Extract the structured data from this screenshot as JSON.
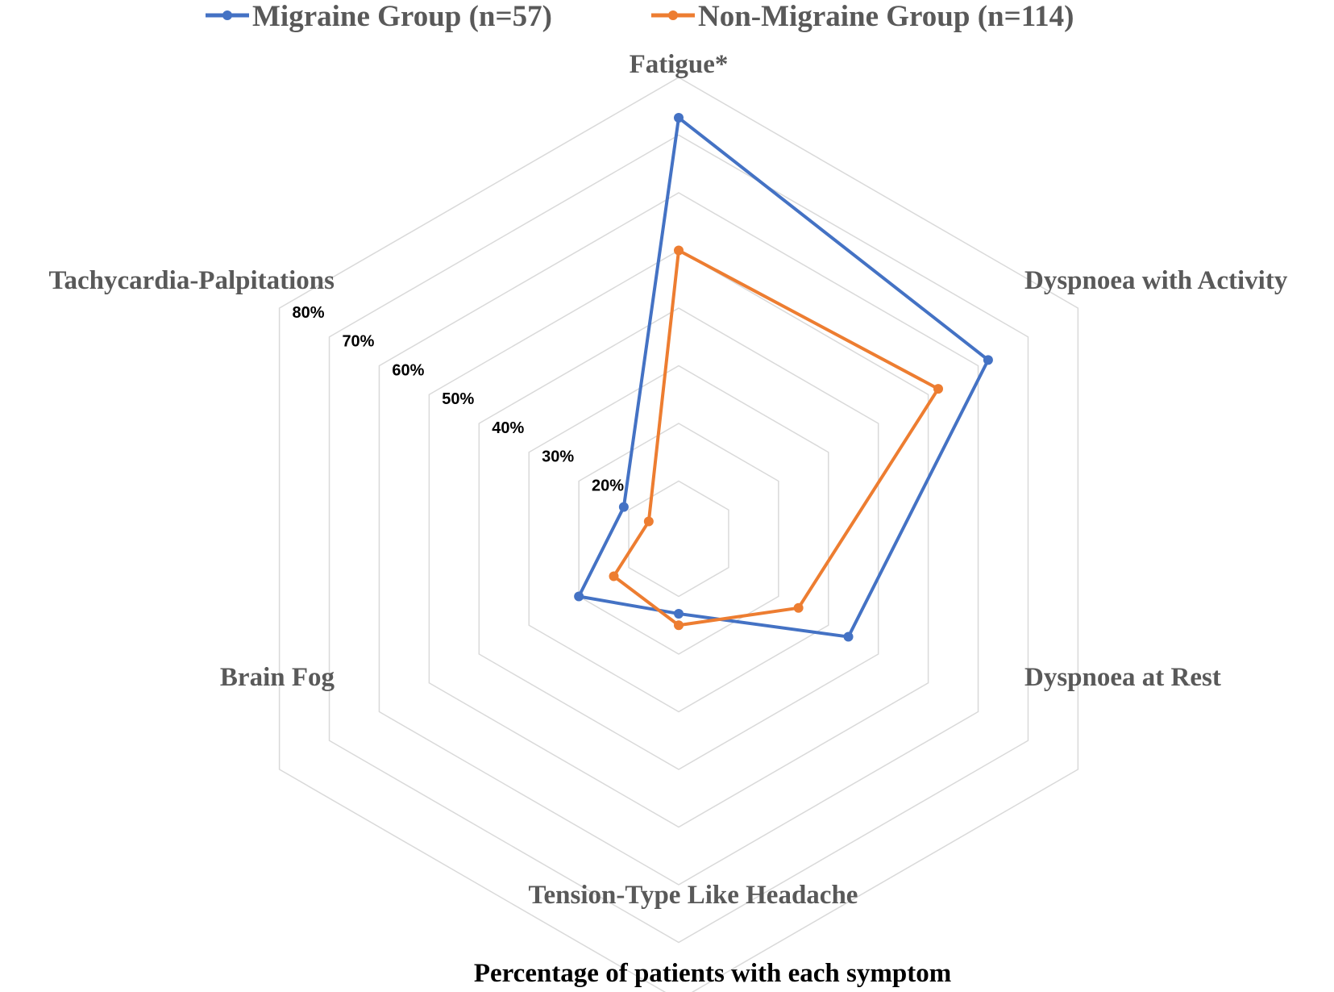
{
  "chart_data": {
    "type": "radar",
    "categories": [
      "Fatigue*",
      "Dyspnoea with Activity",
      "Dyspnoea at Rest",
      "Tension-Type Like Headache",
      "Brain Fog",
      "Tachycardia-Palpitations"
    ],
    "series": [
      {
        "name": "Migraine Group (n=57)",
        "color": "#4472C4",
        "values": [
          83,
          72,
          44,
          23,
          30,
          21
        ]
      },
      {
        "name": "Non-Migraine Group (n=114)",
        "color": "#ED7D31",
        "values": [
          60,
          62,
          34,
          25,
          23,
          16
        ]
      }
    ],
    "ticks": [
      "20%",
      "30%",
      "40%",
      "50%",
      "60%",
      "70%",
      "80%"
    ],
    "tick_values": [
      20,
      30,
      40,
      50,
      60,
      70,
      80
    ],
    "axis_range": [
      10,
      90
    ],
    "grid": true,
    "legend_position": "top",
    "caption": "Percentage of patients with each symptom"
  }
}
